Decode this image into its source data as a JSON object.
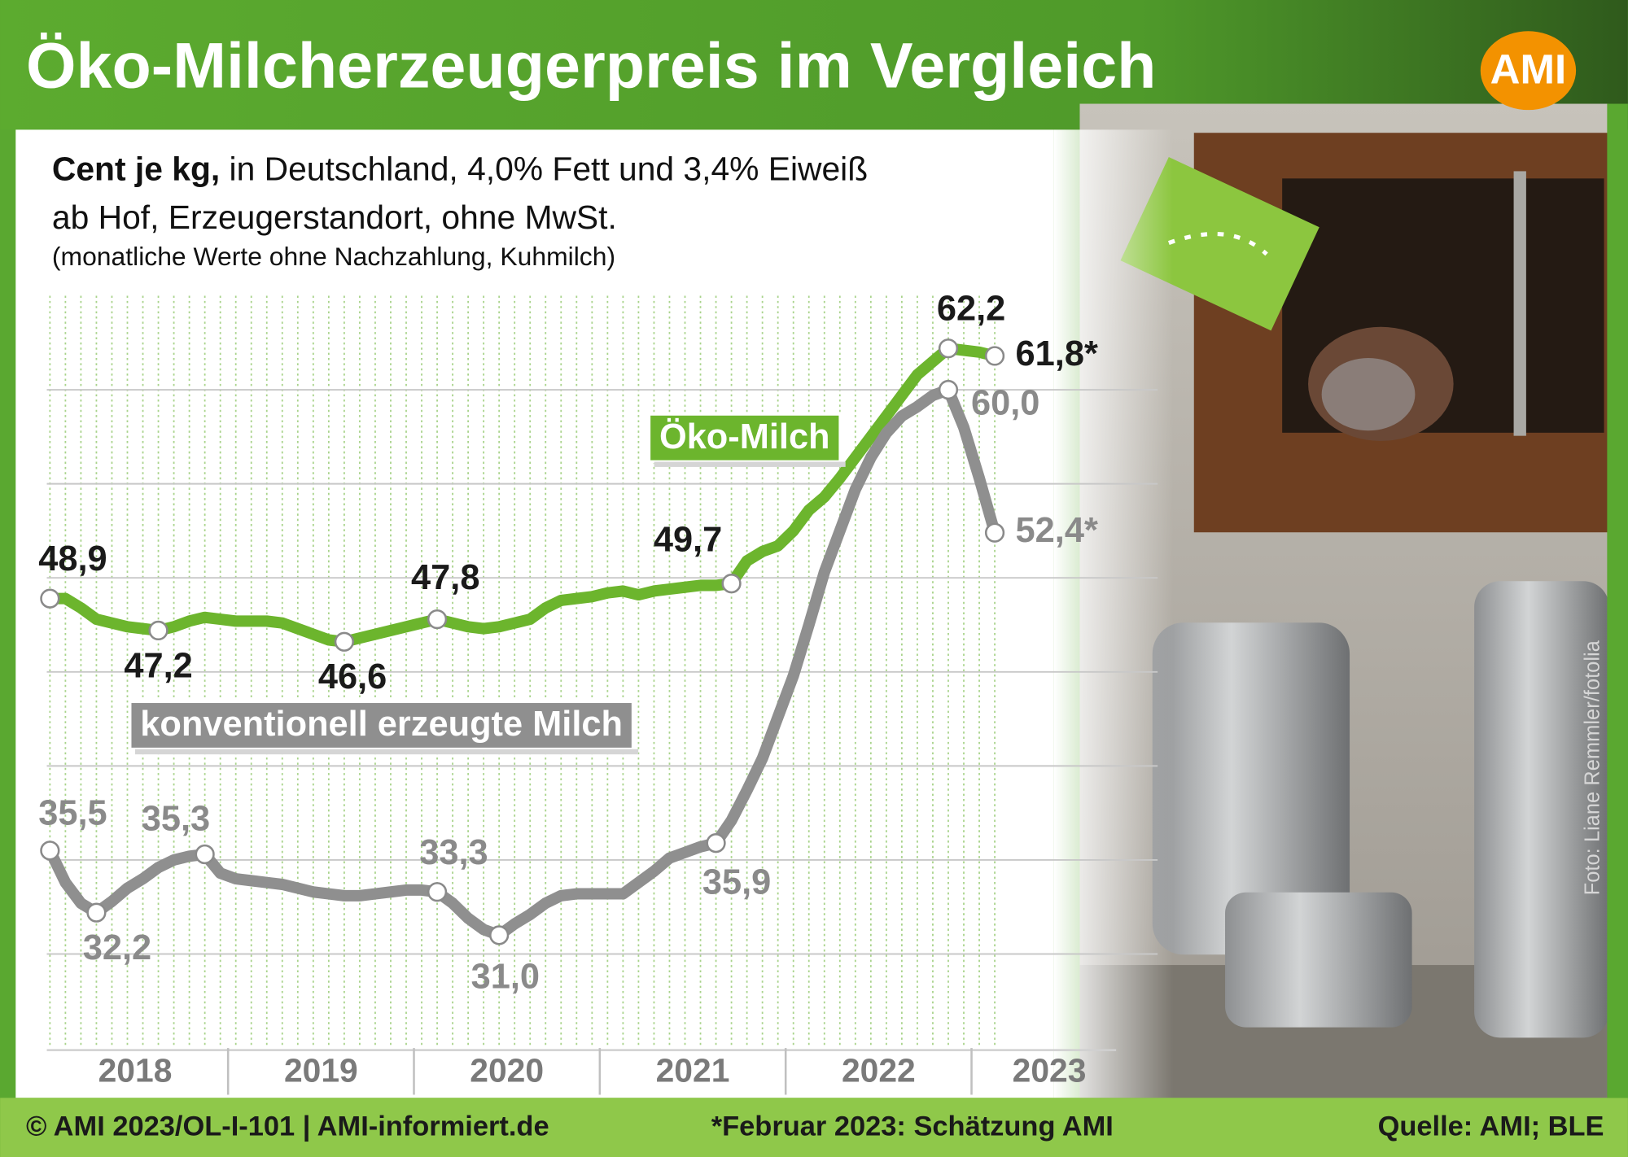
{
  "chart_data": {
    "type": "line",
    "title": "Öko-Milcherzeugerpreis im Vergleich",
    "logo": "AMI",
    "subtitle_bold": "Cent je kg,",
    "subtitle": "in Deutschland, 4,0% Fett und 3,4% Eiweiß",
    "subtitle_2": "ab Hof, Erzeugerstandort, ohne MwSt.",
    "note": "(monatliche Werte ohne Nachzahlung, Kuhmilch)",
    "photo_credit": "Foto: Liane Remmler/fotolia",
    "footer_left": "© AMI 2023/OL-I-101 | AMI-informiert.de",
    "footnote": "*Februar 2023: Schätzung AMI",
    "source": "Quelle: AMI; BLE",
    "x": [
      "2018-01",
      "2018-02",
      "2018-03",
      "2018-04",
      "2018-05",
      "2018-06",
      "2018-07",
      "2018-08",
      "2018-09",
      "2018-10",
      "2018-11",
      "2018-12",
      "2019-01",
      "2019-02",
      "2019-03",
      "2019-04",
      "2019-05",
      "2019-06",
      "2019-07",
      "2019-08",
      "2019-09",
      "2019-10",
      "2019-11",
      "2019-12",
      "2020-01",
      "2020-02",
      "2020-03",
      "2020-04",
      "2020-05",
      "2020-06",
      "2020-07",
      "2020-08",
      "2020-09",
      "2020-10",
      "2020-11",
      "2020-12",
      "2021-01",
      "2021-02",
      "2021-03",
      "2021-04",
      "2021-05",
      "2021-06",
      "2021-07",
      "2021-08",
      "2021-09",
      "2021-10",
      "2021-11",
      "2021-12",
      "2022-01",
      "2022-02",
      "2022-03",
      "2022-04",
      "2022-05",
      "2022-06",
      "2022-07",
      "2022-08",
      "2022-09",
      "2022-10",
      "2022-11",
      "2022-12",
      "2023-01",
      "2023-02"
    ],
    "xtick_labels": [
      "2018",
      "2019",
      "2020",
      "2021",
      "2022",
      "2023"
    ],
    "ylim": [
      25,
      65
    ],
    "yticks": [
      30,
      35,
      40,
      45,
      50,
      55,
      60
    ],
    "grid": true,
    "series": [
      {
        "name": "Öko-Milch",
        "color": "#6cb52d",
        "label_color": "#1a1a1a",
        "values": [
          48.9,
          48.9,
          48.4,
          47.8,
          47.6,
          47.4,
          47.3,
          47.2,
          47.4,
          47.7,
          47.9,
          47.8,
          47.7,
          47.7,
          47.7,
          47.6,
          47.3,
          47.0,
          46.7,
          46.6,
          46.8,
          47.0,
          47.2,
          47.4,
          47.6,
          47.8,
          47.6,
          47.4,
          47.3,
          47.4,
          47.6,
          47.8,
          48.4,
          48.8,
          48.9,
          49.0,
          49.2,
          49.3,
          49.1,
          49.3,
          49.4,
          49.5,
          49.6,
          49.6,
          49.7,
          50.9,
          51.4,
          51.7,
          52.5,
          53.6,
          54.3,
          55.3,
          56.4,
          57.5,
          58.6,
          59.7,
          60.8,
          61.5,
          62.2,
          62.1,
          62.0,
          61.8
        ],
        "value_labels": [
          "48,9",
          null,
          null,
          null,
          null,
          null,
          null,
          "47,2",
          null,
          null,
          null,
          null,
          null,
          null,
          null,
          null,
          null,
          null,
          null,
          "46,6",
          null,
          null,
          null,
          null,
          null,
          "47,8",
          null,
          null,
          null,
          null,
          null,
          null,
          null,
          null,
          null,
          null,
          null,
          null,
          null,
          null,
          null,
          null,
          null,
          null,
          "49,7",
          null,
          null,
          null,
          null,
          null,
          null,
          null,
          null,
          null,
          null,
          null,
          null,
          null,
          "62,2",
          null,
          null,
          "61,8*"
        ]
      },
      {
        "name": "konventionell erzeugte Milch",
        "color": "#8f8f8f",
        "label_color": "#8a8a8a",
        "values": [
          35.5,
          33.8,
          32.7,
          32.2,
          32.8,
          33.5,
          34.0,
          34.6,
          35.0,
          35.2,
          35.3,
          34.3,
          34.0,
          33.9,
          33.8,
          33.7,
          33.5,
          33.3,
          33.2,
          33.1,
          33.1,
          33.2,
          33.3,
          33.4,
          33.4,
          33.3,
          32.7,
          31.9,
          31.3,
          31.0,
          31.6,
          32.1,
          32.7,
          33.1,
          33.2,
          33.2,
          33.2,
          33.2,
          33.8,
          34.4,
          35.1,
          35.4,
          35.7,
          35.9,
          37.1,
          38.7,
          40.4,
          42.6,
          44.8,
          47.5,
          50.3,
          52.5,
          54.7,
          56.4,
          57.7,
          58.6,
          59.1,
          59.7,
          60.0,
          58.0,
          55.3,
          52.4
        ],
        "value_labels": [
          "35,5",
          null,
          null,
          "32,2",
          null,
          null,
          null,
          null,
          null,
          null,
          "35,3",
          null,
          null,
          null,
          null,
          null,
          null,
          null,
          null,
          null,
          null,
          null,
          null,
          null,
          null,
          "33,3",
          null,
          null,
          null,
          "31,0",
          null,
          null,
          null,
          null,
          null,
          null,
          null,
          null,
          null,
          null,
          null,
          null,
          null,
          "35,9",
          null,
          null,
          null,
          null,
          null,
          null,
          null,
          null,
          null,
          null,
          null,
          null,
          null,
          null,
          "60,0",
          null,
          null,
          "52,4*"
        ]
      }
    ]
  }
}
